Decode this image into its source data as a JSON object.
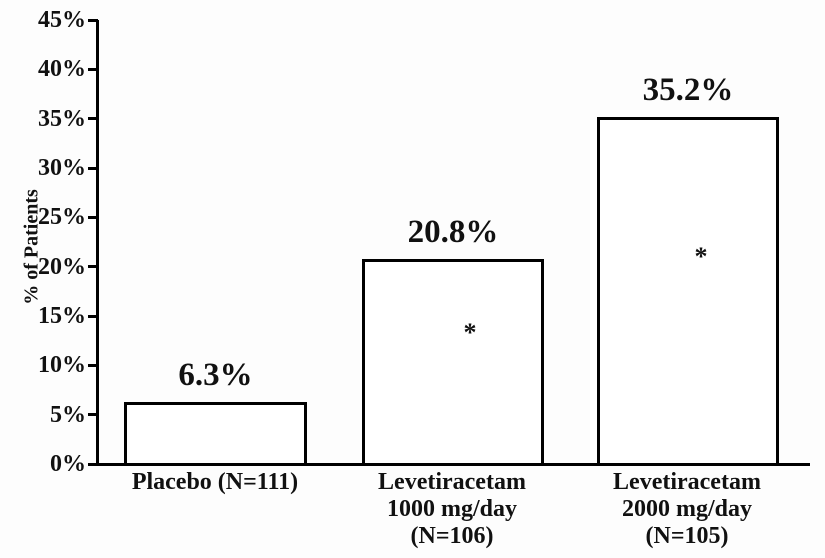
{
  "chart_data": {
    "type": "bar",
    "title": "",
    "xlabel": "",
    "ylabel": "% of Patients",
    "ylim": [
      0,
      45
    ],
    "ytick_step": 5,
    "ytick_labels": [
      "45%",
      "40%",
      "35%",
      "30%",
      "25%",
      "20%",
      "15%",
      "10%",
      "5%",
      "0%"
    ],
    "categories": [
      "Placebo (N=111)",
      "Levetiracetam\n1000 mg/day\n(N=106)",
      "Levetiracetam\n2000 mg/day\n(N=105)"
    ],
    "values": [
      6.3,
      20.8,
      35.2
    ],
    "value_labels": [
      "6.3%",
      "20.8%",
      "35.2%"
    ],
    "significance_markers": [
      "",
      "*",
      "*"
    ],
    "grid": false,
    "legend": "none",
    "colors": {
      "background": "#ffffff",
      "bar_fill": "#ffffff",
      "bar_border": "#000000",
      "axis": "#000000",
      "text": "#111111"
    }
  }
}
